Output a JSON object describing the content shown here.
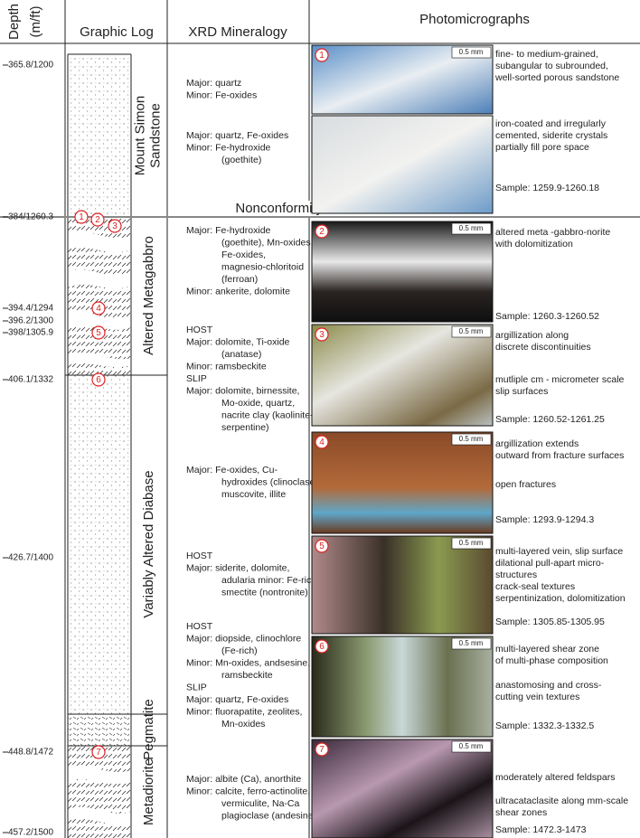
{
  "header": {
    "depth": "Depth",
    "depth_unit": "(m/ft)",
    "graphic_log": "Graphic Log",
    "xrd": "XRD Mineralogy",
    "photomicrographs": "Photomicrographs"
  },
  "depths": [
    "365.8/1200",
    "384/1260.3",
    "394.4/1294",
    "396.2/1300",
    "398/1305.9",
    "406.1/1332",
    "426.7/1400",
    "448.8/1472",
    "457.2/1500"
  ],
  "units": [
    [
      "Mount Simon",
      "Sandstone"
    ],
    [
      "Altered Metagabbro"
    ],
    [
      "Variably Altered Diabase"
    ],
    [
      "Pegmatite"
    ],
    [
      "Metadiorite"
    ]
  ],
  "contact": "Nonconformity contact",
  "log_markers": [
    "1",
    "2",
    "3",
    "4",
    "5",
    "6",
    "7"
  ],
  "xrd": [
    [
      "Major: quartz",
      "Minor: Fe-oxides"
    ],
    [
      "Major: quartz, Fe-oxides",
      "Minor: Fe-hydroxide",
      "(goethite)"
    ],
    [
      "Major: Fe-hydroxide",
      "(goethite), Mn-oxides,",
      "Fe-oxides,",
      "magnesio-chloritoid",
      "(ferroan)",
      "Minor: ankerite, dolomite"
    ],
    [
      "HOST",
      "Major: dolomite, Ti-oxide",
      "(anatase)",
      "Minor: ramsbeckite",
      "SLIP",
      "Major: dolomite, birnessite,",
      "Mo-oxide, quartz,",
      "nacrite clay (kaolinite-",
      "serpentine)"
    ],
    [
      "Major: Fe-oxides, Cu-",
      "hydroxides (clinoclase),",
      "muscovite, illite"
    ],
    [
      "HOST",
      "Major: siderite, dolomite,",
      "adularia minor: Fe-rich",
      "smectite (nontronite)"
    ],
    [
      "HOST",
      "Major: diopside, clinochlore",
      "(Fe-rich)",
      "Minor: Mn-oxides, andsesine,",
      "ramsbeckite",
      "SLIP",
      "Major: quartz, Fe-oxides",
      "Minor: fluorapatite, zeolites,",
      "Mn-oxides"
    ],
    [
      "Major: albite (Ca), anorthite",
      "Minor: calcite, ferro-actinolite,",
      "vermiculite, Na-Ca",
      "plagioclase (andesine)"
    ]
  ],
  "photos": [
    {
      "number": "1",
      "scale": "0.5 mm",
      "notes": [
        [
          "fine- to medium-grained,",
          "subangular to subrounded,",
          "well-sorted porous sandstone"
        ],
        [
          "iron-coated and irregularly",
          "cemented, siderite crystals",
          "partially fill pore space"
        ]
      ],
      "sample": "Sample: 1259.9-1260.18"
    },
    {
      "number": "2",
      "scale": "0.5 mm",
      "notes": [
        [
          "altered meta -gabbro-norite",
          "with dolomitization"
        ]
      ],
      "sample": "Sample: 1260.3-1260.52"
    },
    {
      "number": "3",
      "scale": "0.5 mm",
      "notes": [
        [
          "argillization along",
          "discrete discontinuities"
        ],
        [
          "mutliple cm - micrometer scale",
          "slip surfaces"
        ]
      ],
      "sample": "Sample: 1260.52-1261.25"
    },
    {
      "number": "4",
      "scale": "0.5 mm",
      "notes": [
        [
          "argillization extends",
          "outward from fracture surfaces"
        ],
        [
          "open fractures"
        ]
      ],
      "sample": "Sample: 1293.9-1294.3"
    },
    {
      "number": "5",
      "scale": "0.5 mm",
      "notes": [
        [
          "multi-layered vein, slip surface",
          "dilational pull-apart micro-",
          "structures",
          "crack-seal textures",
          "serpentinization, dolomitization"
        ]
      ],
      "sample": "Sample: 1305.85-1305.95"
    },
    {
      "number": "6",
      "scale": "0.5 mm",
      "notes": [
        [
          "multi-layered shear zone",
          "of multi-phase composition"
        ],
        [
          "anastomosing and cross-",
          "cutting vein textures"
        ]
      ],
      "sample": "Sample: 1332.3-1332.5"
    },
    {
      "number": "7",
      "scale": "0.5 mm",
      "notes": [
        [
          "moderately altered feldspars"
        ],
        [
          "ultracataclasite along mm-scale",
          "shear zones"
        ]
      ],
      "sample": "Sample: 1472.3-1473"
    }
  ]
}
